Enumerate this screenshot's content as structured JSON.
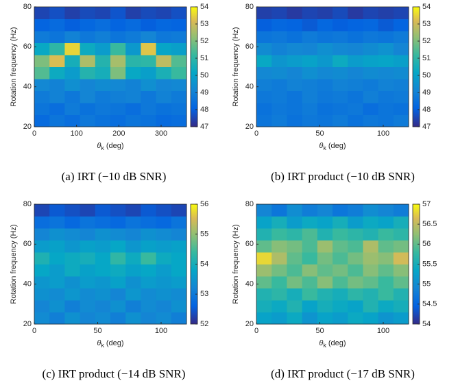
{
  "chart_data": [
    {
      "type": "heatmap",
      "caption": "(a) IRT (−10 dB SNR)",
      "ylabel": "Rotation frequency (Hz)",
      "xlabel": [
        "θ",
        "k",
        "(deg)"
      ],
      "colormap": "parula",
      "xlim": [
        0,
        360
      ],
      "xticks": [
        0,
        100,
        200,
        300
      ],
      "ylim": [
        20,
        80
      ],
      "yticks": [
        20,
        40,
        60,
        80
      ],
      "clim": [
        47,
        54
      ],
      "cticks": [
        47,
        48,
        49,
        50,
        51,
        52,
        53,
        54
      ],
      "x": [
        18,
        54,
        90,
        126,
        162,
        198,
        234,
        270,
        306,
        342
      ],
      "y": [
        23,
        29,
        35,
        41,
        47,
        53,
        59,
        65,
        71,
        77
      ],
      "z": [
        [
          48.3,
          48.6,
          48.4,
          48.7,
          48.5,
          48.4,
          48.6,
          48.5,
          48.3,
          48.4
        ],
        [
          48.6,
          48.4,
          48.8,
          48.5,
          48.7,
          48.6,
          48.4,
          48.7,
          48.5,
          48.6
        ],
        [
          48.8,
          49.0,
          48.7,
          49.1,
          48.8,
          48.9,
          49.0,
          48.7,
          49.0,
          48.8
        ],
        [
          49.2,
          49.0,
          49.4,
          49.1,
          49.3,
          49.2,
          49.0,
          49.4,
          49.1,
          49.2
        ],
        [
          51.5,
          50.3,
          49.8,
          50.8,
          50.5,
          52.0,
          50.2,
          49.9,
          50.6,
          51.2
        ],
        [
          52.0,
          53.2,
          50.5,
          52.6,
          50.8,
          52.5,
          50.9,
          51.0,
          52.8,
          51.5
        ],
        [
          50.2,
          51.0,
          53.5,
          50.3,
          49.8,
          51.2,
          49.7,
          53.3,
          50.1,
          49.9
        ],
        [
          48.8,
          48.6,
          49.0,
          48.7,
          48.9,
          48.6,
          48.8,
          49.1,
          48.7,
          48.8
        ],
        [
          48.1,
          48.3,
          48.0,
          48.2,
          48.4,
          48.1,
          48.3,
          48.0,
          48.2,
          48.1
        ],
        [
          47.5,
          47.7,
          47.4,
          47.6,
          47.5,
          47.8,
          47.4,
          47.6,
          47.5,
          47.7
        ]
      ]
    },
    {
      "type": "heatmap",
      "caption": "(b) IRT product (−10 dB SNR)",
      "ylabel": "Rotation frequency (Hz)",
      "xlabel": [
        "θ",
        "k",
        "(deg)"
      ],
      "colormap": "parula",
      "xlim": [
        0,
        120
      ],
      "xticks": [
        0,
        50,
        100
      ],
      "ylim": [
        20,
        80
      ],
      "yticks": [
        20,
        40,
        60,
        80
      ],
      "clim": [
        47,
        54
      ],
      "cticks": [
        47,
        48,
        49,
        50,
        51,
        52,
        53,
        54
      ],
      "x": [
        6,
        18,
        30,
        42,
        54,
        66,
        78,
        90,
        102,
        114
      ],
      "y": [
        23,
        29,
        35,
        41,
        47,
        53,
        59,
        65,
        71,
        77
      ],
      "z": [
        [
          48.6,
          48.8,
          48.5,
          48.7,
          48.6,
          48.8,
          48.5,
          48.7,
          48.6,
          48.8
        ],
        [
          48.5,
          48.7,
          48.6,
          48.8,
          48.5,
          48.6,
          48.7,
          48.4,
          48.6,
          48.5
        ],
        [
          48.7,
          48.8,
          48.6,
          48.9,
          48.7,
          48.8,
          48.6,
          48.9,
          48.7,
          48.8
        ],
        [
          48.9,
          48.8,
          49.0,
          48.9,
          48.8,
          49.0,
          48.9,
          48.8,
          49.0,
          48.9
        ],
        [
          49.2,
          49.3,
          49.1,
          49.4,
          49.2,
          49.3,
          49.1,
          49.3,
          49.2,
          49.3
        ],
        [
          50.2,
          49.6,
          49.8,
          50.0,
          49.7,
          50.3,
          49.8,
          50.0,
          50.1,
          49.9
        ],
        [
          49.3,
          49.0,
          49.2,
          49.1,
          49.4,
          49.2,
          49.1,
          49.3,
          49.5,
          49.1
        ],
        [
          48.6,
          48.7,
          48.5,
          48.8,
          48.6,
          48.7,
          48.5,
          48.7,
          48.6,
          48.8
        ],
        [
          48.0,
          48.2,
          48.1,
          47.9,
          48.2,
          48.0,
          48.1,
          48.2,
          47.9,
          48.1
        ],
        [
          47.4,
          47.5,
          47.3,
          47.5,
          47.4,
          47.6,
          47.3,
          47.5,
          47.4,
          47.5
        ]
      ]
    },
    {
      "type": "heatmap",
      "caption": "(c) IRT product (−14 dB SNR)",
      "ylabel": "Rotation frequency (Hz)",
      "xlabel": [
        "θ",
        "k",
        "(deg)"
      ],
      "colormap": "parula",
      "xlim": [
        0,
        120
      ],
      "xticks": [
        0,
        50,
        100
      ],
      "ylim": [
        20,
        80
      ],
      "yticks": [
        20,
        40,
        60,
        80
      ],
      "clim": [
        52,
        56
      ],
      "cticks": [
        52,
        53,
        54,
        55,
        56
      ],
      "x": [
        6,
        18,
        30,
        42,
        54,
        66,
        78,
        90,
        102,
        114
      ],
      "y": [
        23,
        29,
        35,
        41,
        47,
        53,
        59,
        65,
        71,
        77
      ],
      "z": [
        [
          53.3,
          53.1,
          53.4,
          53.2,
          53.3,
          53.1,
          53.4,
          53.2,
          53.3,
          53.1
        ],
        [
          53.2,
          53.4,
          53.1,
          53.3,
          53.2,
          53.4,
          53.1,
          53.3,
          53.2,
          53.4
        ],
        [
          53.4,
          53.3,
          53.5,
          53.3,
          53.4,
          53.2,
          53.5,
          53.3,
          53.4,
          53.3
        ],
        [
          53.5,
          53.6,
          53.4,
          53.6,
          53.5,
          53.7,
          53.4,
          53.6,
          53.5,
          53.6
        ],
        [
          53.8,
          53.6,
          53.9,
          53.7,
          53.8,
          53.9,
          53.7,
          53.8,
          53.6,
          53.8
        ],
        [
          54.1,
          53.8,
          53.9,
          54.0,
          53.8,
          54.3,
          53.9,
          54.4,
          53.9,
          53.8
        ],
        [
          53.6,
          53.7,
          53.5,
          53.7,
          53.6,
          53.8,
          53.5,
          53.7,
          53.6,
          53.7
        ],
        [
          53.2,
          53.4,
          53.3,
          53.2,
          53.4,
          53.3,
          53.2,
          53.4,
          53.3,
          53.2
        ],
        [
          52.8,
          52.9,
          52.7,
          52.9,
          52.8,
          52.7,
          52.9,
          52.8,
          52.7,
          52.9
        ],
        [
          52.3,
          52.5,
          52.4,
          52.3,
          52.5,
          52.4,
          52.3,
          52.5,
          52.4,
          52.3
        ]
      ]
    },
    {
      "type": "heatmap",
      "caption": "(d) IRT product (−17 dB SNR)",
      "ylabel": "Rotation frequency (Hz)",
      "xlabel": [
        "θ",
        "k",
        "(deg)"
      ],
      "colormap": "parula",
      "xlim": [
        0,
        120
      ],
      "xticks": [
        0,
        50,
        100
      ],
      "ylim": [
        20,
        80
      ],
      "yticks": [
        20,
        40,
        60,
        80
      ],
      "clim": [
        54,
        57
      ],
      "cticks": [
        54,
        54.5,
        55,
        55.5,
        56,
        56.5,
        57
      ],
      "x": [
        6,
        18,
        30,
        42,
        54,
        66,
        78,
        90,
        102,
        114
      ],
      "y": [
        23,
        29,
        35,
        41,
        47,
        53,
        59,
        65,
        71,
        77
      ],
      "z": [
        [
          55.3,
          55.2,
          55.4,
          55.1,
          55.3,
          55.2,
          55.4,
          55.3,
          55.1,
          55.2
        ],
        [
          55.5,
          55.4,
          55.6,
          55.3,
          55.5,
          55.4,
          55.3,
          55.6,
          55.4,
          55.5
        ],
        [
          55.6,
          55.7,
          55.5,
          55.8,
          55.6,
          55.5,
          55.7,
          55.6,
          55.8,
          55.6
        ],
        [
          56.0,
          55.8,
          56.1,
          55.9,
          56.2,
          55.9,
          56.1,
          56.0,
          55.8,
          56.0
        ],
        [
          56.3,
          56.1,
          55.9,
          56.2,
          56.0,
          56.1,
          55.9,
          56.2,
          56.0,
          56.2
        ],
        [
          56.8,
          56.4,
          56.0,
          55.8,
          56.1,
          55.9,
          56.1,
          56.3,
          56.2,
          56.6
        ],
        [
          56.0,
          56.2,
          56.1,
          55.9,
          56.3,
          56.0,
          55.9,
          56.4,
          56.0,
          56.1
        ],
        [
          55.6,
          55.8,
          55.7,
          55.9,
          55.6,
          55.8,
          55.7,
          55.6,
          55.8,
          55.7
        ],
        [
          55.3,
          55.5,
          55.2,
          55.4,
          55.3,
          55.5,
          55.2,
          55.4,
          55.3,
          55.5
        ],
        [
          54.9,
          54.7,
          55.0,
          54.8,
          54.9,
          54.7,
          54.8,
          55.0,
          54.9,
          54.8
        ]
      ]
    }
  ]
}
